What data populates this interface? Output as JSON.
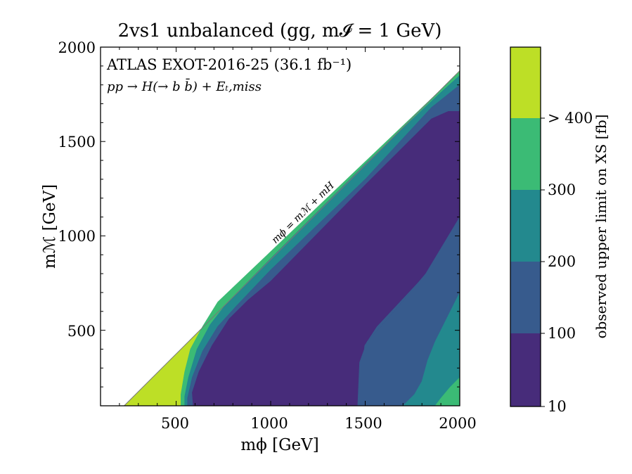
{
  "chart_data": {
    "type": "heatmap",
    "title": "2vs1 unbalanced (gg, m𝓘 = 1 GeV)",
    "xlabel": "mϕ [GeV]",
    "ylabel": "mℳ [GeV]",
    "xlim": [
      100,
      2000
    ],
    "ylim": [
      100,
      2000
    ],
    "xticks": [
      "500",
      "1000",
      "1500",
      "2000"
    ],
    "yticks": [
      "500",
      "1000",
      "1500",
      "2000"
    ],
    "annotations": {
      "experiment": "ATLAS EXOT-2016-25 (36.1 fb⁻¹)",
      "process": "pp → H(→ b b̄) + Eₜ,miss",
      "diagonal_label": "mϕ = mℳ + mH"
    },
    "diagonal_offset_gev": 125,
    "colorbar": {
      "label": "observed upper limit on XS [fb]",
      "levels": [
        {
          "label": "10",
          "color": "#472c7a"
        },
        {
          "label": "100",
          "color": "#375b8d"
        },
        {
          "label": "200",
          "color": "#23898e"
        },
        {
          "label": "300",
          "color": "#3bbb75"
        },
        {
          "label": "> 400",
          "color": "#bddf26"
        }
      ]
    },
    "regions": [
      {
        "level": "> 400",
        "color": "#bddf26",
        "boundary": [
          [
            225,
            100
          ],
          [
            2000,
            1875
          ],
          [
            2000,
            100
          ]
        ]
      },
      {
        "level": "300",
        "color": "#3bbb75",
        "boundary": [
          [
            525,
            100
          ],
          [
            525,
            160
          ],
          [
            545,
            280
          ],
          [
            575,
            400
          ],
          [
            640,
            520
          ],
          [
            720,
            650
          ],
          [
            2000,
            1870
          ],
          [
            2000,
            100
          ]
        ]
      },
      {
        "level": "200",
        "color": "#23898e",
        "boundary": [
          [
            545,
            100
          ],
          [
            545,
            150
          ],
          [
            565,
            250
          ],
          [
            610,
            400
          ],
          [
            680,
            530
          ],
          [
            765,
            640
          ],
          [
            1000,
            880
          ],
          [
            1500,
            1380
          ],
          [
            1900,
            1760
          ],
          [
            2000,
            1850
          ],
          [
            2000,
            100
          ]
        ]
      },
      {
        "level": "100",
        "color": "#375b8d",
        "boundary": [
          [
            560,
            100
          ],
          [
            560,
            140
          ],
          [
            585,
            250
          ],
          [
            640,
            390
          ],
          [
            720,
            520
          ],
          [
            820,
            630
          ],
          [
            1000,
            820
          ],
          [
            1500,
            1300
          ],
          [
            1850,
            1680
          ],
          [
            2000,
            1800
          ],
          [
            2000,
            100
          ]
        ]
      },
      {
        "level": "10",
        "color": "#472c7a",
        "boundary": [
          [
            590,
            100
          ],
          [
            585,
            170
          ],
          [
            620,
            280
          ],
          [
            690,
            420
          ],
          [
            780,
            560
          ],
          [
            880,
            660
          ],
          [
            1000,
            760
          ],
          [
            1500,
            1270
          ],
          [
            1850,
            1620
          ],
          [
            1940,
            1660
          ],
          [
            2000,
            1660
          ],
          [
            2000,
            1100
          ],
          [
            1840,
            820
          ],
          [
            1560,
            520
          ],
          [
            1495,
            420
          ],
          [
            1460,
            100
          ]
        ]
      },
      {
        "level": "100",
        "color": "#375b8d",
        "boundary": [
          [
            1460,
            100
          ],
          [
            1470,
            330
          ],
          [
            1510,
            440
          ],
          [
            1620,
            560
          ],
          [
            1820,
            800
          ],
          [
            2000,
            1100
          ],
          [
            2000,
            100
          ]
        ]
      },
      {
        "level": "200",
        "color": "#23898e",
        "boundary": [
          [
            1700,
            100
          ],
          [
            1760,
            160
          ],
          [
            1800,
            230
          ],
          [
            1830,
            340
          ],
          [
            1870,
            440
          ],
          [
            2000,
            700
          ],
          [
            2000,
            100
          ]
        ]
      },
      {
        "level": "300",
        "color": "#3bbb75",
        "boundary": [
          [
            1870,
            100
          ],
          [
            1900,
            140
          ],
          [
            1950,
            200
          ],
          [
            2000,
            250
          ],
          [
            2000,
            100
          ]
        ]
      }
    ]
  }
}
